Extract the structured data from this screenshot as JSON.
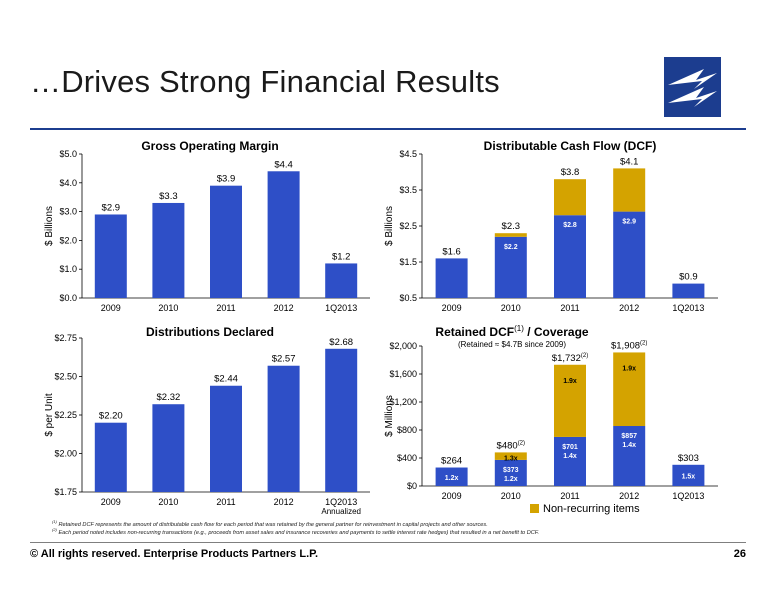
{
  "header": {
    "title": "…Drives Strong Financial Results"
  },
  "footer": {
    "copyright": "©  All rights reserved. Enterprise Products Partners L.P.",
    "page": "26",
    "footnote1_mark": "(1)",
    "footnote1": "Retained DCF represents the amount of distributable cash flow for each period that was retained by the general partner for reinvestment in capital projects and other sources.",
    "footnote2_mark": "(2)",
    "footnote2": "Each period noted includes non-recurring transactions (e.g., proceeds from asset sales and insurance recoveries and payments to settle interest rate hedges) that resulted in a net benefit to DCF."
  },
  "colors": {
    "bar": "#2e4fc7",
    "bar_dark": "#1f3a99",
    "gold": "#d4a300",
    "rule": "#1c3d8f"
  },
  "chart_data": [
    {
      "id": "gom",
      "type": "bar",
      "title": "Gross Operating Margin",
      "ylabel": "$ Billions",
      "categories": [
        "2009",
        "2010",
        "2011",
        "2012",
        "1Q2013"
      ],
      "values": [
        2.9,
        3.3,
        3.9,
        4.4,
        1.2
      ],
      "value_labels": [
        "$2.9",
        "$3.3",
        "$3.9",
        "$4.4",
        "$1.2"
      ],
      "ylim": [
        0,
        5
      ],
      "yticks": [
        0,
        1,
        2,
        3,
        4,
        5
      ],
      "ytick_labels": [
        "$0.0",
        "$1.0",
        "$2.0",
        "$3.0",
        "$4.0",
        "$5.0"
      ]
    },
    {
      "id": "dcf",
      "type": "bar",
      "title": "Distributable Cash Flow (DCF)",
      "ylabel": "$ Billions",
      "categories": [
        "2009",
        "2010",
        "2011",
        "2012",
        "1Q2013"
      ],
      "series": [
        {
          "values": [
            1.6,
            2.2,
            2.8,
            2.9,
            0.9
          ],
          "inner_labels": [
            "",
            "$2.2",
            "$2.8",
            "$2.9",
            ""
          ]
        },
        {
          "values": [
            0,
            0.1,
            1.0,
            1.2,
            0
          ]
        }
      ],
      "total_labels": [
        "$1.6",
        "$2.3",
        "$3.8",
        "$4.1",
        "$0.9"
      ],
      "ylim": [
        0.5,
        4.5
      ],
      "yticks": [
        0.5,
        1.5,
        2.5,
        3.5,
        4.5
      ],
      "ytick_labels": [
        "$0.5",
        "$1.5",
        "$2.5",
        "$3.5",
        "$4.5"
      ]
    },
    {
      "id": "dist",
      "type": "bar",
      "title": "Distributions Declared",
      "ylabel": "$ per Unit",
      "categories": [
        "2009",
        "2010",
        "2011",
        "2012",
        "1Q2013"
      ],
      "sub_label": "Annualized",
      "values": [
        2.2,
        2.32,
        2.44,
        2.57,
        2.68
      ],
      "value_labels": [
        "$2.20",
        "$2.32",
        "$2.44",
        "$2.57",
        "$2.68"
      ],
      "ylim": [
        1.75,
        2.75
      ],
      "yticks": [
        1.75,
        2.0,
        2.25,
        2.5,
        2.75
      ],
      "ytick_labels": [
        "$1.75",
        "$2.00",
        "$2.25",
        "$2.50",
        "$2.75"
      ]
    },
    {
      "id": "ret",
      "type": "bar",
      "title": "Retained DCF",
      "title_sup": "(1)",
      "title_suffix": " / Coverage",
      "subtitle": "(Retained ≈ $4.7B since 2009)",
      "ylabel": "$ Millions",
      "categories": [
        "2009",
        "2010",
        "2011",
        "2012",
        "1Q2013"
      ],
      "series": [
        {
          "values": [
            264,
            373,
            701,
            857,
            303
          ],
          "inner_labels": [
            "",
            "$373",
            "$701",
            "$857",
            ""
          ],
          "inner_sub": [
            "1.2x",
            "1.2x",
            "1.4x",
            "1.4x",
            "1.5x"
          ]
        },
        {
          "name": "Non-recurring items",
          "values": [
            0,
            107,
            1031,
            1051,
            0
          ],
          "inner_labels": [
            "",
            "1.3x",
            "1.9x",
            "1.9x",
            ""
          ]
        }
      ],
      "total_labels": [
        "$264",
        "$480",
        "$1,732",
        "$1,908",
        "$303"
      ],
      "total_sups": [
        "",
        "(2)",
        "(2)",
        "(2)",
        ""
      ],
      "ylim": [
        0,
        2000
      ],
      "yticks": [
        0,
        400,
        800,
        1200,
        1600,
        2000
      ],
      "ytick_labels": [
        "$0",
        "$400",
        "$800",
        "$1,200",
        "$1,600",
        "$2,000"
      ],
      "legend": "bottom-right"
    }
  ]
}
